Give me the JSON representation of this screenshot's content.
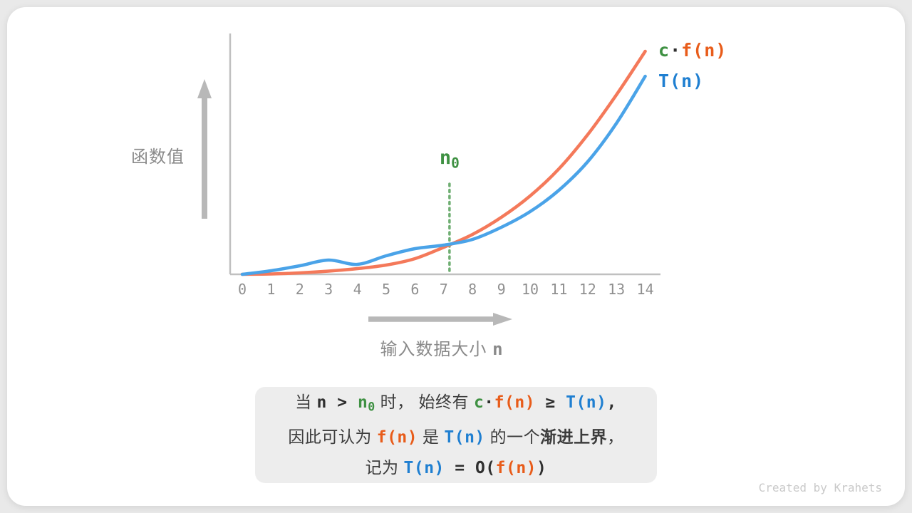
{
  "watermark": "Created by Krahets",
  "colors": {
    "page_bg": "#e9e9e9",
    "card_bg": "#ffffff",
    "caption_bg": "#ededed",
    "orange_curve": "#f4795a",
    "orange_text": "#e85c1a",
    "blue_curve": "#4aa3e8",
    "blue_text": "#1f7fd1",
    "green_text": "#3f9143",
    "green_dotted": "#6fae72",
    "axis": "#c0c0c0",
    "arrow": "#b8b8b8",
    "tick_text": "#8f8f8f",
    "axis_label_text": "#8a8a8a",
    "dark_text": "#3c3c3c",
    "math_dark": "#2f2f2f",
    "watermark_text": "#c9c9c9"
  },
  "chart_data": {
    "type": "line",
    "title": "",
    "xlabel": "输入数据大小 n",
    "ylabel": "函数值",
    "x": [
      0,
      1,
      2,
      3,
      4,
      5,
      6,
      7,
      8,
      9,
      10,
      11,
      12,
      13,
      14
    ],
    "x_ticks": [
      "0",
      "1",
      "2",
      "3",
      "4",
      "5",
      "6",
      "7",
      "8",
      "9",
      "10",
      "11",
      "12",
      "13",
      "14"
    ],
    "xlim": [
      0,
      14
    ],
    "ylim_units": [
      0,
      340
    ],
    "grid": false,
    "legend_position": "top-right",
    "series": [
      {
        "name": "c·f(n)",
        "color_key": "orange_curve",
        "values": [
          0,
          0.5,
          2,
          4.5,
          8,
          13,
          22,
          38,
          56,
          80,
          110,
          148,
          196,
          252,
          313
        ]
      },
      {
        "name": "T(n)",
        "color_key": "blue_curve",
        "values": [
          0,
          5,
          12,
          20,
          14,
          26,
          36,
          41,
          49,
          66,
          88,
          118,
          158,
          212,
          278
        ]
      }
    ],
    "annotation": {
      "label": "n0",
      "x": 7.2,
      "segments": [
        {
          "t": "n",
          "s": "green"
        },
        {
          "t": "0",
          "s": "green-sub"
        }
      ]
    },
    "legend": [
      {
        "segments": [
          {
            "t": "c",
            "s": "green"
          },
          {
            "t": "·",
            "s": "dark"
          },
          {
            "t": "f(n)",
            "s": "orange"
          }
        ]
      },
      {
        "segments": [
          {
            "t": "T(n)",
            "s": "blue"
          }
        ]
      }
    ],
    "xlabel_segments": [
      {
        "t": "输入数据大小 ",
        "s": "cn-gray"
      },
      {
        "t": "n",
        "s": "mono-gray"
      }
    ]
  },
  "caption": {
    "lines": [
      [
        {
          "t": "当 ",
          "s": "cn"
        },
        {
          "t": "n",
          "s": "dark"
        },
        {
          "t": " > ",
          "s": "dark"
        },
        {
          "t": "n",
          "s": "green"
        },
        {
          "t": "0",
          "s": "green-sub"
        },
        {
          "t": " 时， ",
          "s": "cn"
        },
        {
          "t": "始终有 ",
          "s": "cn"
        },
        {
          "t": "c",
          "s": "green"
        },
        {
          "t": "·",
          "s": "dark"
        },
        {
          "t": "f(n)",
          "s": "orange"
        },
        {
          "t": " ≥ ",
          "s": "dark"
        },
        {
          "t": "T(n)",
          "s": "blue"
        },
        {
          "t": ",",
          "s": "dark"
        }
      ],
      [
        {
          "t": "因此可认为 ",
          "s": "cn"
        },
        {
          "t": "f(n)",
          "s": "orange"
        },
        {
          "t": " 是 ",
          "s": "cn"
        },
        {
          "t": "T(n)",
          "s": "blue"
        },
        {
          "t": " 的一个",
          "s": "cn"
        },
        {
          "t": "渐进上界",
          "s": "cnb"
        },
        {
          "t": "，",
          "s": "cn"
        }
      ],
      [
        {
          "t": "记为 ",
          "s": "cn"
        },
        {
          "t": "T(n)",
          "s": "blue"
        },
        {
          "t": " = ",
          "s": "dark"
        },
        {
          "t": "O(",
          "s": "dark"
        },
        {
          "t": "f(n)",
          "s": "orange"
        },
        {
          "t": ")",
          "s": "dark"
        }
      ]
    ]
  }
}
